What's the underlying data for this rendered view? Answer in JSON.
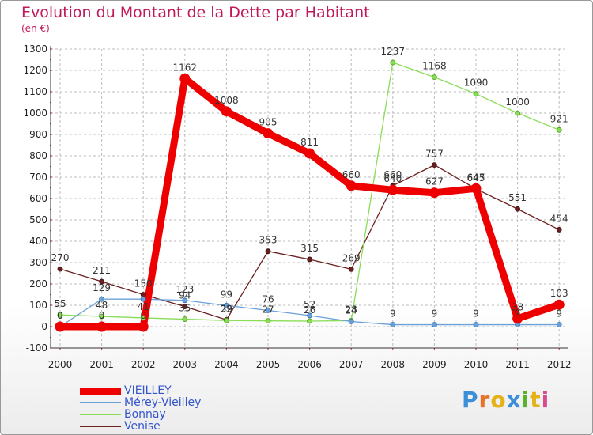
{
  "title": "Evolution du Montant de la Dette par Habitant",
  "unit": "(en €)",
  "logo": {
    "text": "Proxiti",
    "letter_colors": [
      "#3b8ed8",
      "#e5732a",
      "#e5b21a",
      "#3b8ed8",
      "#5bb02c",
      "#e5b21a",
      "#d94b8a"
    ]
  },
  "chart_data": {
    "type": "line",
    "title": "Evolution du Montant de la Dette par Habitant",
    "ylabel": "(en €)",
    "xlabel": "",
    "x": [
      "2000",
      "2001",
      "2002",
      "2003",
      "2004",
      "2005",
      "2006",
      "2007",
      "2008",
      "2009",
      "2010",
      "2011",
      "2012"
    ],
    "yticks": [
      "-100",
      "0",
      "100",
      "200",
      "300",
      "400",
      "500",
      "600",
      "700",
      "800",
      "900",
      "1000",
      "1100",
      "1200",
      "1300"
    ],
    "ylim": [
      -100,
      1300
    ],
    "grid": "dashed-horizontal",
    "legend_position": "bottom-left",
    "series": [
      {
        "name": "VIEILLEY",
        "color": "#ee0000",
        "values": [
          0,
          0,
          0,
          1162,
          1008,
          905,
          811,
          660,
          640,
          627,
          647,
          38,
          103
        ],
        "labels": [
          "0",
          "0",
          "0",
          "1162",
          "1008",
          "905",
          "811",
          "660",
          "640",
          "627",
          "647",
          "38",
          "103"
        ]
      },
      {
        "name": "Mérey-Vieilley",
        "color": "#6aa0d8",
        "values": [
          0,
          129,
          129,
          123,
          99,
          76,
          52,
          24,
          9,
          9,
          9,
          9,
          9
        ],
        "labels": [
          "0",
          "129",
          "",
          "123",
          "99",
          "76",
          "52",
          "24",
          "9",
          "9",
          "9",
          "9",
          "9"
        ]
      },
      {
        "name": "Bonnay",
        "color": "#88dd55",
        "values": [
          55,
          48,
          41,
          35,
          29,
          27,
          26,
          28,
          1237,
          1168,
          1090,
          1000,
          921
        ],
        "labels": [
          "55",
          "48",
          "41",
          "35",
          "29",
          "27",
          "26",
          "28",
          "1237",
          "1168",
          "1090",
          "1000",
          "921"
        ]
      },
      {
        "name": "Venise",
        "color": "#6b1f1f",
        "values": [
          270,
          211,
          150,
          94,
          32,
          353,
          315,
          269,
          660,
          757,
          645,
          551,
          454
        ],
        "labels": [
          "270",
          "211",
          "150",
          "94",
          "32",
          "353",
          "315",
          "269",
          "660",
          "757",
          "645",
          "551",
          "454"
        ]
      }
    ]
  }
}
